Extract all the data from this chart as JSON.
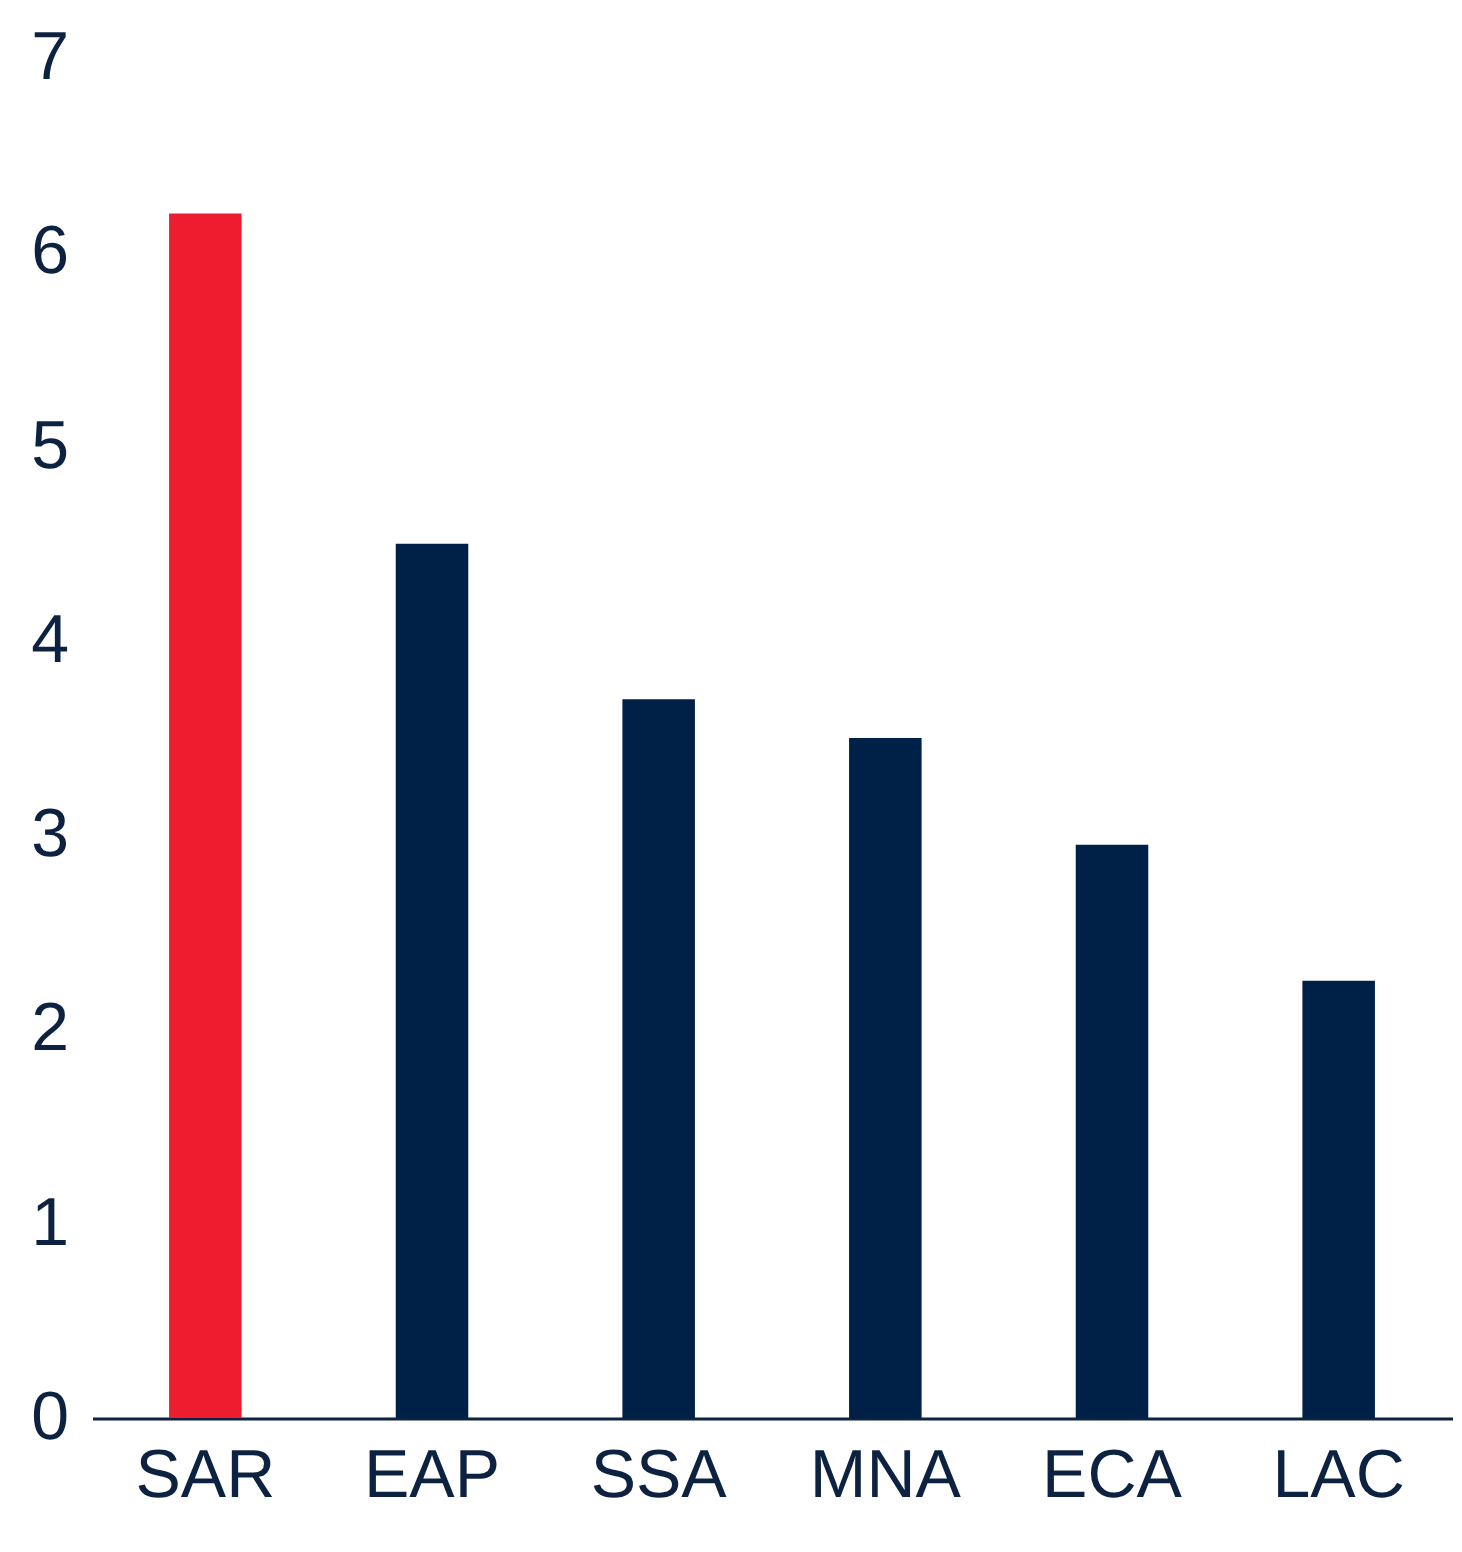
{
  "chart_data": {
    "type": "bar",
    "categories": [
      "SAR",
      "EAP",
      "SSA",
      "MNA",
      "ECA",
      "LAC"
    ],
    "values": [
      6.2,
      4.5,
      3.7,
      3.5,
      2.95,
      2.25
    ],
    "colors": [
      "#ed1c2e",
      "#002147",
      "#002147",
      "#002147",
      "#002147",
      "#002147"
    ],
    "ylim": [
      0,
      7
    ],
    "yticks": [
      0,
      1,
      2,
      3,
      4,
      5,
      6,
      7
    ],
    "grid": false
  }
}
